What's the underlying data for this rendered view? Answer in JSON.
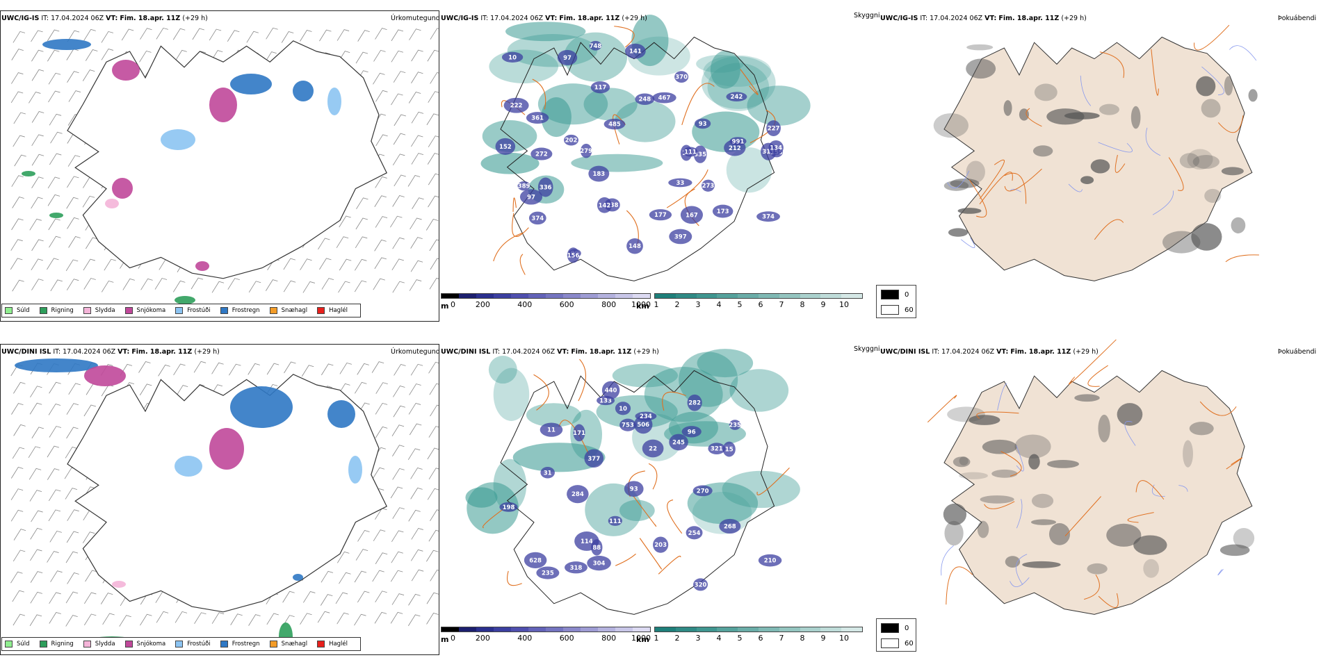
{
  "runs": [
    {
      "id": "top",
      "model": "UWC/IG-IS",
      "it_label": "IT:",
      "it_value": "17.04.2024 06Z",
      "vt_label": "VT:",
      "vt_value": "Fim. 18.apr. 11Z",
      "lead": "(+29 h)",
      "precip_title": "Úrkomutegund",
      "cloud_title": "Skyggni",
      "fog_title": "Þokuábendi",
      "cloud_labels": [
        "152",
        "202",
        "397",
        "272",
        "11",
        "279",
        "97",
        "99",
        "10",
        "374",
        "335",
        "248",
        "227",
        "167",
        "338",
        "310",
        "212",
        "117",
        "177",
        "242",
        "222",
        "148",
        "142",
        "336",
        "183",
        "389",
        "748",
        "991",
        "33",
        "156",
        "370",
        "93",
        "467",
        "485",
        "155",
        "134",
        "173",
        "97",
        "361",
        "141",
        "273",
        "111",
        "374"
      ]
    },
    {
      "id": "bottom",
      "model": "UWC/DINI ISL",
      "it_label": "IT:",
      "it_value": "17.04.2024 06Z",
      "vt_label": "VT:",
      "vt_value": "Fim. 18.apr. 11Z",
      "lead": "(+29 h)",
      "precip_title": "Úrkomutegund",
      "cloud_title": "Skyggni",
      "fog_title": "Þokuábendi",
      "cloud_labels": [
        "133",
        "245",
        "11",
        "22",
        "96",
        "506",
        "628",
        "254",
        "198",
        "321",
        "377",
        "440",
        "31",
        "318",
        "171",
        "210",
        "235",
        "304",
        "235",
        "282",
        "284",
        "753",
        "234",
        "320",
        "93",
        "114",
        "88",
        "203",
        "270",
        "268",
        "111",
        "10",
        "15"
      ]
    }
  ],
  "precip_legend": [
    {
      "label": "Súld",
      "color": "#90ee90"
    },
    {
      "label": "Rigning",
      "color": "#2e9e5b"
    },
    {
      "label": "Slydda",
      "color": "#f4b4d8"
    },
    {
      "label": "Snjókoma",
      "color": "#c0489a"
    },
    {
      "label": "Frostúði",
      "color": "#8cc4f2"
    },
    {
      "label": "Frostregn",
      "color": "#2f78c4"
    },
    {
      "label": "Snæhagl",
      "color": "#f39c28"
    },
    {
      "label": "Haglél",
      "color": "#e8201c"
    }
  ],
  "cloud_base_bar": {
    "unit": "m",
    "ticks": [
      "0",
      "200",
      "400",
      "600",
      "800",
      "1000"
    ],
    "colors": [
      "#000000",
      "#1c1f6e",
      "#2a2f8e",
      "#3b3fa0",
      "#4f4fae",
      "#6262b8",
      "#7474c0",
      "#8a88ca",
      "#9e9cd4",
      "#b4b2de",
      "#c8c6e8",
      "#dcdaf2"
    ]
  },
  "visibility_bar": {
    "unit": "km",
    "ticks": [
      "1",
      "2",
      "3",
      "4",
      "5",
      "6",
      "7",
      "8",
      "9",
      "10"
    ],
    "colors": [
      "#1e7f7a",
      "#2f8a85",
      "#3f9690",
      "#55a29c",
      "#6aada8",
      "#7fb9b4",
      "#94c5c0",
      "#aad1cd",
      "#bfdcd9",
      "#d5e8e6"
    ]
  },
  "fog_legend": [
    {
      "label": "0",
      "color": "#000000"
    },
    {
      "label": "60",
      "color": "#ffffff"
    }
  ],
  "colors": {
    "land": "#f0e2d4",
    "roads": "#e07020",
    "rivers": "#8899ee",
    "glacier_shade": "#555555",
    "visibility_teal": "#3a9a92"
  }
}
